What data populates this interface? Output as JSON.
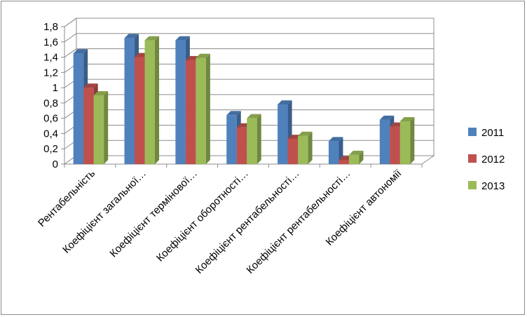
{
  "chart_data": {
    "type": "bar",
    "categories": [
      "Рентабельність",
      "Коефіцієнт загальної…",
      "Коефіцієнт термінової…",
      "Коефіцієнт оборотності…",
      "Коефіцієнт рентабельності…",
      "Коефіцієнт рентабельності…",
      "Коефіцієнт автономії"
    ],
    "series": [
      {
        "name": "2011",
        "color": "#4f81bd",
        "values": [
          1.45,
          1.65,
          1.62,
          0.64,
          0.78,
          0.3,
          0.58
        ]
      },
      {
        "name": "2012",
        "color": "#c0504d",
        "values": [
          1.0,
          1.4,
          1.36,
          0.48,
          0.33,
          0.05,
          0.49
        ]
      },
      {
        "name": "2013",
        "color": "#9bbb59",
        "values": [
          0.9,
          1.62,
          1.39,
          0.6,
          0.37,
          0.12,
          0.56
        ]
      }
    ],
    "yticks": [
      "0",
      "0,2",
      "0,4",
      "0,6",
      "0,8",
      "1",
      "1,2",
      "1,4",
      "1,6",
      "1,8"
    ],
    "ylim": [
      0,
      1.8
    ],
    "grid": true,
    "legend_position": "right",
    "title": "",
    "xlabel": "",
    "ylabel": ""
  }
}
